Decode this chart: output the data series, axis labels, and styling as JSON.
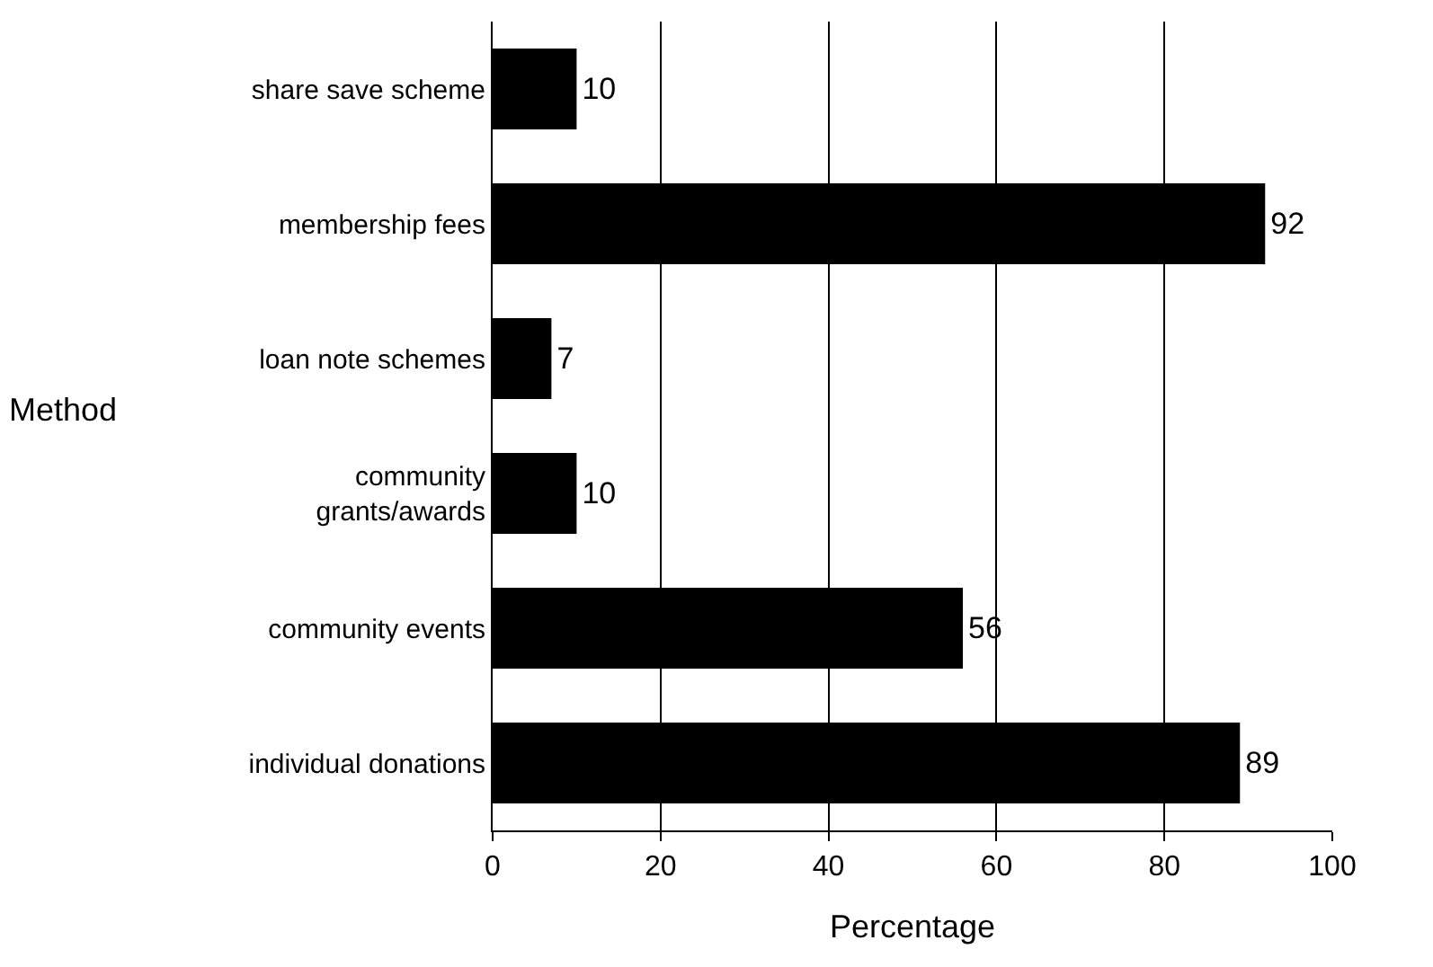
{
  "chart_data": {
    "type": "bar",
    "orientation": "horizontal",
    "categories": [
      "share save scheme",
      "membership fees",
      "loan note schemes",
      "community\ngrants/awards",
      "community events",
      "individual donations"
    ],
    "values": [
      10,
      92,
      7,
      10,
      56,
      89
    ],
    "color": "#000000",
    "xlabel": "Percentage",
    "ylabel": "Method",
    "xlim": [
      0,
      100
    ],
    "xticks": [
      0,
      20,
      40,
      60,
      80,
      100
    ],
    "grid": "x",
    "data_labels": true
  }
}
